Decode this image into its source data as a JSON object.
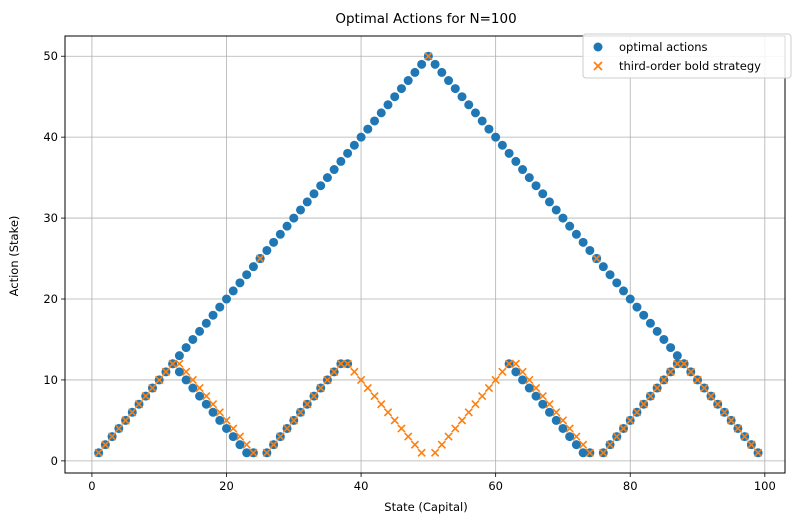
{
  "chart_data": {
    "type": "scatter",
    "title": "Optimal Actions for N=100",
    "xlabel": "State (Capital)",
    "ylabel": "Action (Stake)",
    "xlim": [
      -4,
      103
    ],
    "ylim": [
      -1.5,
      52.5
    ],
    "xticks": [
      0,
      20,
      40,
      60,
      80,
      100
    ],
    "yticks": [
      0,
      10,
      20,
      30,
      40,
      50
    ],
    "grid": true,
    "legend_position": "top-right",
    "series": [
      {
        "name": "optimal actions",
        "marker": "circle",
        "color": "#1f77b4",
        "x": [
          1,
          2,
          3,
          4,
          5,
          6,
          7,
          8,
          9,
          10,
          11,
          12,
          13,
          14,
          15,
          16,
          17,
          18,
          19,
          20,
          21,
          22,
          23,
          24,
          25,
          26,
          27,
          28,
          29,
          30,
          31,
          32,
          33,
          34,
          35,
          36,
          37,
          38,
          39,
          40,
          41,
          42,
          43,
          44,
          45,
          46,
          47,
          48,
          49,
          50,
          51,
          52,
          53,
          54,
          55,
          56,
          57,
          58,
          59,
          60,
          61,
          62,
          63,
          64,
          65,
          66,
          67,
          68,
          69,
          70,
          71,
          72,
          73,
          74,
          75,
          76,
          77,
          78,
          79,
          80,
          81,
          82,
          83,
          84,
          85,
          86,
          87,
          88,
          89,
          90,
          91,
          92,
          93,
          94,
          95,
          96,
          97,
          98,
          99,
          12,
          13,
          14,
          15,
          16,
          17,
          18,
          19,
          20,
          21,
          22,
          23,
          24,
          25,
          26,
          27,
          28,
          29,
          30,
          31,
          32,
          33,
          34,
          35,
          36,
          37,
          38,
          62,
          63,
          64,
          65,
          66,
          67,
          68,
          69,
          70,
          71,
          72,
          73,
          74,
          75,
          76,
          77,
          78,
          79,
          80,
          81,
          82,
          83,
          84,
          85,
          86,
          87,
          88
        ],
        "y": [
          1,
          2,
          3,
          4,
          5,
          6,
          7,
          8,
          9,
          10,
          11,
          12,
          13,
          14,
          15,
          16,
          17,
          18,
          19,
          20,
          21,
          22,
          23,
          24,
          25,
          26,
          27,
          28,
          29,
          30,
          31,
          32,
          33,
          34,
          35,
          36,
          37,
          38,
          39,
          40,
          41,
          42,
          43,
          44,
          45,
          46,
          47,
          48,
          49,
          50,
          49,
          48,
          47,
          46,
          45,
          44,
          43,
          42,
          41,
          40,
          39,
          38,
          37,
          36,
          35,
          34,
          33,
          32,
          31,
          30,
          29,
          28,
          27,
          26,
          25,
          24,
          23,
          22,
          21,
          20,
          19,
          18,
          17,
          16,
          15,
          14,
          13,
          12,
          11,
          10,
          9,
          8,
          7,
          6,
          5,
          4,
          3,
          2,
          1,
          12,
          11,
          10,
          9,
          8,
          7,
          6,
          5,
          4,
          3,
          2,
          1,
          1,
          25,
          1,
          2,
          3,
          4,
          5,
          6,
          7,
          8,
          9,
          10,
          11,
          12,
          12,
          12,
          11,
          10,
          9,
          8,
          7,
          6,
          5,
          4,
          3,
          2,
          1,
          1,
          25,
          1,
          2,
          3,
          4,
          5,
          6,
          7,
          8,
          9,
          10,
          11,
          12,
          12
        ]
      },
      {
        "name": "third-order bold strategy",
        "marker": "x",
        "color": "#ff7f0e",
        "x": [
          1,
          2,
          3,
          4,
          5,
          6,
          7,
          8,
          9,
          10,
          11,
          12,
          13,
          14,
          15,
          16,
          17,
          18,
          19,
          20,
          21,
          22,
          23,
          24,
          25,
          26,
          27,
          28,
          29,
          30,
          31,
          32,
          33,
          34,
          35,
          36,
          37,
          38,
          39,
          40,
          41,
          42,
          43,
          44,
          45,
          46,
          47,
          48,
          49,
          50,
          51,
          52,
          53,
          54,
          55,
          56,
          57,
          58,
          59,
          60,
          61,
          62,
          63,
          64,
          65,
          66,
          67,
          68,
          69,
          70,
          71,
          72,
          73,
          74,
          75,
          76,
          77,
          78,
          79,
          80,
          81,
          82,
          83,
          84,
          85,
          86,
          87,
          88,
          89,
          90,
          91,
          92,
          93,
          94,
          95,
          96,
          97,
          98,
          99
        ],
        "y": [
          1,
          2,
          3,
          4,
          5,
          6,
          7,
          8,
          9,
          10,
          11,
          12,
          12,
          11,
          10,
          9,
          8,
          7,
          6,
          5,
          4,
          3,
          2,
          1,
          25,
          1,
          2,
          3,
          4,
          5,
          6,
          7,
          8,
          9,
          10,
          11,
          12,
          12,
          11,
          10,
          9,
          8,
          7,
          6,
          5,
          4,
          3,
          2,
          1,
          50,
          1,
          2,
          3,
          4,
          5,
          6,
          7,
          8,
          9,
          10,
          11,
          12,
          12,
          11,
          10,
          9,
          8,
          7,
          6,
          5,
          4,
          3,
          2,
          1,
          25,
          1,
          2,
          3,
          4,
          5,
          6,
          7,
          8,
          9,
          10,
          11,
          12,
          12,
          11,
          10,
          9,
          8,
          7,
          6,
          5,
          4,
          3,
          2,
          1
        ]
      }
    ]
  }
}
